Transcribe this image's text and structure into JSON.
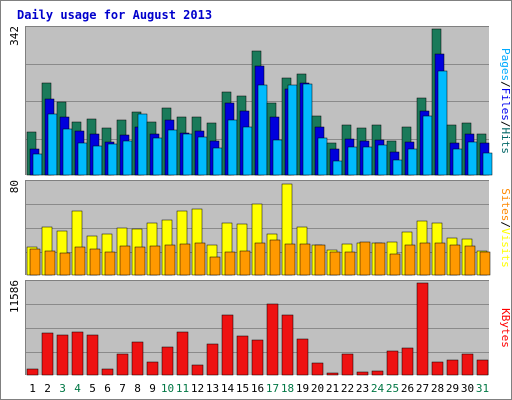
{
  "chart_data": {
    "type": "bar",
    "title": "Daily usage for August 2013",
    "categories": [
      "1",
      "2",
      "3",
      "4",
      "5",
      "6",
      "7",
      "8",
      "9",
      "10",
      "11",
      "12",
      "13",
      "14",
      "15",
      "16",
      "17",
      "18",
      "19",
      "20",
      "21",
      "22",
      "23",
      "24",
      "25",
      "26",
      "27",
      "28",
      "29",
      "30",
      "31"
    ],
    "weekend_days": [
      "3",
      "4",
      "10",
      "11",
      "17",
      "18",
      "24",
      "25",
      "31"
    ],
    "panels": [
      {
        "id": "hits",
        "max_label": "342",
        "ylim": [
          0,
          342
        ],
        "legend": [
          {
            "text": "Pages",
            "color": "#00aaff"
          },
          {
            "text": "/",
            "color": "#000000"
          },
          {
            "text": "Files",
            "color": "#0000ee"
          },
          {
            "text": "/",
            "color": "#000000"
          },
          {
            "text": "Hits",
            "color": "#006666"
          }
        ],
        "series": [
          {
            "name": "Hits",
            "color": "#1a7a5a",
            "values": [
              100,
              215,
              170,
              123,
              131,
              111,
              130,
              148,
              124,
              158,
              135,
              135,
              122,
              195,
              184,
              290,
              168,
              227,
              236,
              139,
              75,
              116,
              111,
              116,
              79,
              113,
              180,
              342,
              117,
              122,
              95
            ]
          },
          {
            "name": "Files",
            "color": "#0000dd",
            "values": [
              62,
              178,
              137,
              103,
              95,
              78,
              94,
              112,
              97,
              130,
              98,
              102,
              79,
              168,
              149,
              255,
              137,
              202,
              216,
              112,
              60,
              85,
              79,
              83,
              55,
              78,
              150,
              283,
              76,
              95,
              76
            ]
          },
          {
            "name": "Pages",
            "color": "#00bbff",
            "values": [
              50,
              142,
              108,
              75,
              67,
              72,
              80,
              142,
              86,
              105,
              95,
              88,
              64,
              128,
              112,
              210,
              82,
              211,
              213,
              87,
              33,
              65,
              66,
              70,
              34,
              60,
              138,
              243,
              62,
              77,
              51
            ]
          }
        ]
      },
      {
        "id": "visits",
        "max_label": "80",
        "ylim": [
          0,
          80
        ],
        "legend": [
          {
            "text": "Sites",
            "color": "#ff8800"
          },
          {
            "text": "/",
            "color": "#000000"
          },
          {
            "text": "Visits",
            "color": "#ffff00"
          }
        ],
        "series": [
          {
            "name": "Visits",
            "color": "#ffff00",
            "values": [
              24,
              42,
              38,
              56,
              34,
              36,
              41,
              40,
              45,
              48,
              56,
              57,
              26,
              45,
              44,
              62,
              36,
              79,
              42,
              26,
              22,
              27,
              28,
              28,
              29,
              37,
              47,
              45,
              32,
              31,
              21
            ]
          },
          {
            "name": "Sites",
            "color": "#ff9900",
            "values": [
              23,
              21,
              19,
              24,
              23,
              20,
              25,
              24,
              25,
              26,
              27,
              28,
              16,
              20,
              21,
              28,
              30,
              27,
              27,
              26,
              20,
              20,
              29,
              28,
              18,
              26,
              28,
              28,
              26,
              25,
              20
            ]
          }
        ]
      },
      {
        "id": "kbytes",
        "max_label": "11586",
        "ylim": [
          0,
          11586
        ],
        "legend": [
          {
            "text": "KBytes",
            "color": "#ff0000"
          }
        ],
        "series": [
          {
            "name": "KBytes",
            "color": "#ee1111",
            "values": [
              800,
              5240,
              5010,
              5380,
              5020,
              780,
              2630,
              4180,
              1620,
              3470,
              5410,
              1240,
              3960,
              7500,
              4940,
              4400,
              8930,
              7500,
              4590,
              1530,
              200,
              2690,
              330,
              470,
              2970,
              3390,
              11586,
              1630,
              1940,
              2620,
              1910
            ]
          }
        ]
      }
    ]
  }
}
